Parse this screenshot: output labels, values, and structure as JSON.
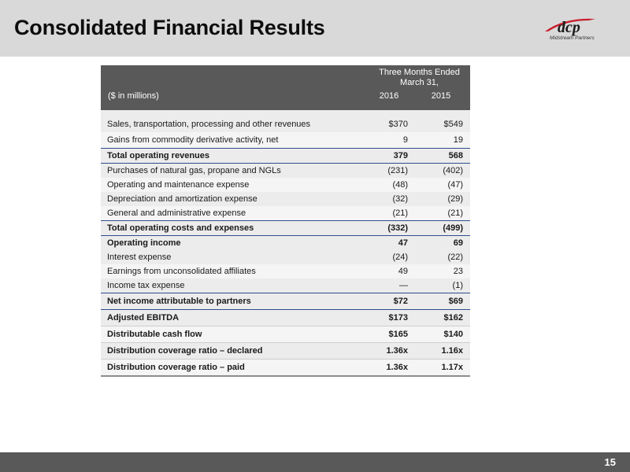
{
  "header": {
    "title": "Consolidated Financial Results",
    "logo_text": "dcp",
    "logo_subtext": "Midstream Partners"
  },
  "table": {
    "period_label": "Three Months Ended March 31,",
    "units_label": "($ in millions)",
    "columns": [
      "2016",
      "2015"
    ],
    "rows": [
      {
        "label": "Sales, transportation, processing and other revenues",
        "v1": "$370",
        "v2": "$549"
      },
      {
        "label": "Gains from commodity derivative activity, net",
        "v1": "9",
        "v2": "19"
      },
      {
        "label": "Total operating revenues",
        "v1": "379",
        "v2": "568"
      },
      {
        "label": "Purchases of natural gas, propane and NGLs",
        "v1": "(231)",
        "v2": "(402)"
      },
      {
        "label": "Operating and maintenance expense",
        "v1": "(48)",
        "v2": "(47)"
      },
      {
        "label": "Depreciation and amortization expense",
        "v1": "(32)",
        "v2": "(29)"
      },
      {
        "label": "General and administrative expense",
        "v1": "(21)",
        "v2": "(21)"
      },
      {
        "label": "Total operating costs and expenses",
        "v1": "(332)",
        "v2": "(499)"
      },
      {
        "label": "Operating income",
        "v1": "47",
        "v2": "69"
      },
      {
        "label": "Interest expense",
        "v1": "(24)",
        "v2": "(22)"
      },
      {
        "label": "Earnings from unconsolidated affiliates",
        "v1": "49",
        "v2": "23"
      },
      {
        "label": "Income tax expense",
        "v1": "—",
        "v2": "(1)"
      },
      {
        "label": "Net income attributable to partners",
        "v1": "$72",
        "v2": "$69"
      },
      {
        "label": "Adjusted EBITDA",
        "v1": "$173",
        "v2": "$162"
      },
      {
        "label": "Distributable cash flow",
        "v1": "$165",
        "v2": "$140"
      },
      {
        "label": "Distribution coverage ratio – declared",
        "v1": "1.36x",
        "v2": "1.16x"
      },
      {
        "label": "Distribution coverage ratio – paid",
        "v1": "1.36x",
        "v2": "1.17x"
      }
    ]
  },
  "footer": {
    "page_number": "15"
  },
  "colors": {
    "header_bg": "#d9d9d9",
    "table_header_bg": "#595959",
    "rule_blue": "#2e4e8f",
    "logo_red": "#c8202f"
  }
}
